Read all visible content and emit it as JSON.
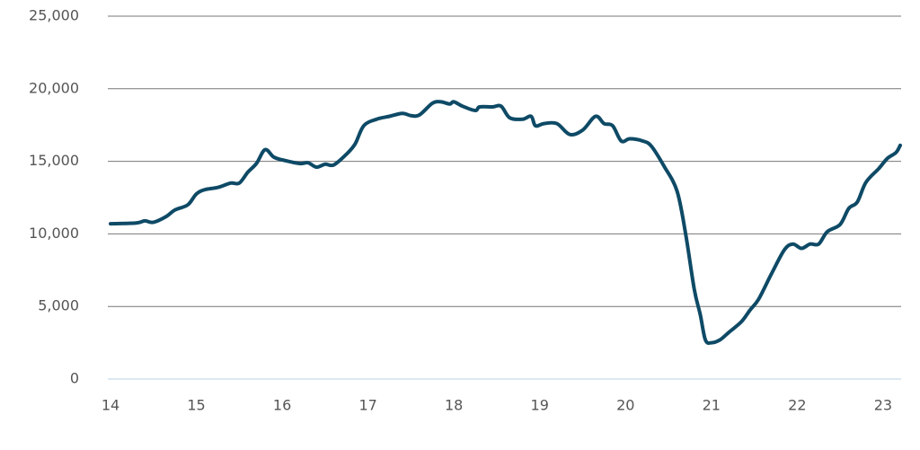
{
  "chart_data": {
    "type": "line",
    "x": [
      14.0,
      14.3,
      14.4,
      14.5,
      14.65,
      14.75,
      14.9,
      15.0,
      15.1,
      15.25,
      15.4,
      15.5,
      15.6,
      15.7,
      15.8,
      15.9,
      16.0,
      16.2,
      16.3,
      16.4,
      16.5,
      16.6,
      16.75,
      16.85,
      16.95,
      17.1,
      17.25,
      17.4,
      17.5,
      17.6,
      17.75,
      17.85,
      17.95,
      18.0,
      18.1,
      18.25,
      18.3,
      18.45,
      18.55,
      18.65,
      18.8,
      18.9,
      18.95,
      19.05,
      19.2,
      19.35,
      19.5,
      19.65,
      19.75,
      19.85,
      19.95,
      20.05,
      20.2,
      20.3,
      20.45,
      20.6,
      20.7,
      20.8,
      20.87,
      20.93,
      21.0,
      21.1,
      21.2,
      21.35,
      21.45,
      21.55,
      21.7,
      21.85,
      21.95,
      22.05,
      22.15,
      22.25,
      22.35,
      22.5,
      22.6,
      22.7,
      22.8,
      22.95,
      23.05,
      23.15,
      23.2
    ],
    "series": [
      {
        "color": "#0e4a66",
        "values": [
          10700,
          10750,
          10900,
          10800,
          11200,
          11650,
          12000,
          12750,
          13050,
          13200,
          13500,
          13500,
          14250,
          14850,
          15800,
          15300,
          15100,
          14850,
          14900,
          14600,
          14800,
          14750,
          15500,
          16200,
          17450,
          17900,
          18100,
          18300,
          18150,
          18200,
          19000,
          19100,
          18950,
          19100,
          18800,
          18500,
          18750,
          18750,
          18800,
          18000,
          17900,
          18100,
          17450,
          17600,
          17600,
          16850,
          17150,
          18100,
          17600,
          17450,
          16400,
          16550,
          16400,
          16050,
          14650,
          12950,
          10000,
          6200,
          4450,
          2700,
          2500,
          2700,
          3200,
          3950,
          4750,
          5500,
          7250,
          8900,
          9300,
          9000,
          9300,
          9300,
          10150,
          10650,
          11750,
          12200,
          13550,
          14500,
          15200,
          15600,
          16100
        ]
      }
    ],
    "xlim": [
      14,
      23.2
    ],
    "xticks": [
      14,
      15,
      16,
      17,
      18,
      19,
      20,
      21,
      22,
      23
    ],
    "ylim": [
      0,
      25000
    ],
    "yticks": [
      0,
      {
        "value": 5000,
        "label": "5,000"
      },
      {
        "value": 10000,
        "label": "10,000"
      },
      {
        "value": 15000,
        "label": "15,000"
      },
      {
        "value": 20000,
        "label": "20,000"
      },
      {
        "value": 25000,
        "label": "25,000"
      }
    ],
    "grid": true
  }
}
